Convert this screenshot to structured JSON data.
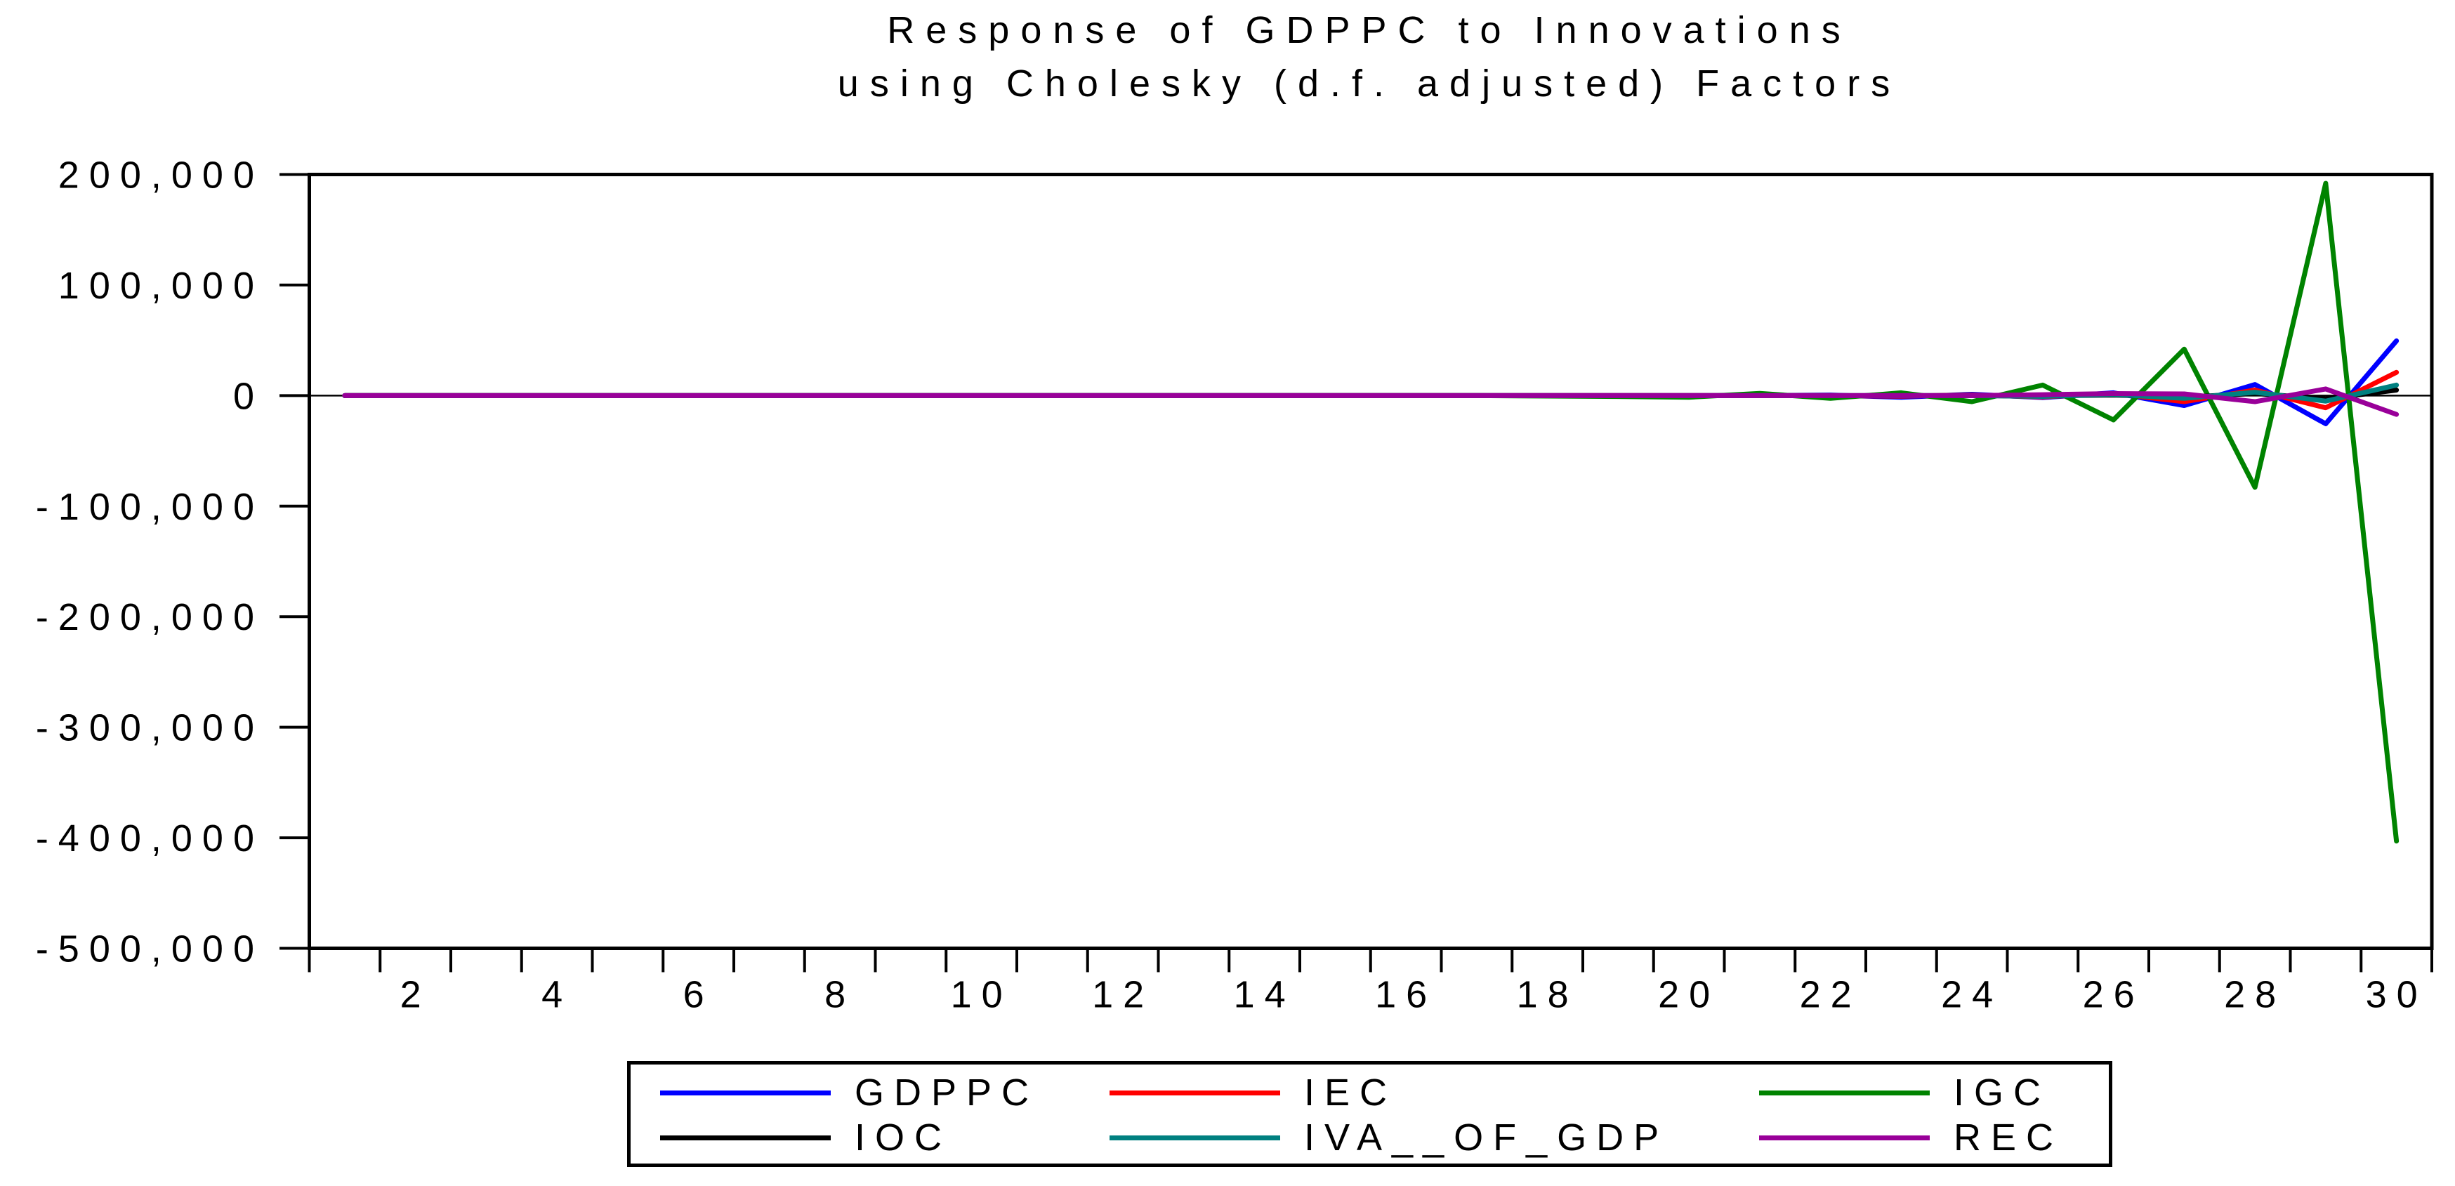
{
  "window": {
    "background": "#ffffff",
    "axis_color": "#000000",
    "zero_line_color": "#000000"
  },
  "chart_data": {
    "type": "line",
    "title_lines": [
      "Response of GDPPC to Innovations",
      "using Cholesky (d.f. adjusted) Factors"
    ],
    "title": "Response of GDPPC to Innovations using Cholesky (d.f. adjusted) Factors",
    "xlabel": "",
    "ylabel": "",
    "xlim": [
      0.5,
      30.5
    ],
    "ylim": [
      -500000,
      200000
    ],
    "grid": false,
    "zero_line": true,
    "legend_position": "bottom",
    "x_periods_count": 30,
    "x_tick_values": [
      2,
      4,
      6,
      8,
      10,
      12,
      14,
      16,
      18,
      20,
      22,
      24,
      26,
      28,
      30
    ],
    "x_tick_labels": [
      "2",
      "4",
      "6",
      "8",
      "10",
      "12",
      "14",
      "16",
      "18",
      "20",
      "22",
      "24",
      "26",
      "28",
      "30"
    ],
    "y_tick_values": [
      200000,
      100000,
      0,
      -100000,
      -200000,
      -300000,
      -400000,
      -500000
    ],
    "y_tick_labels": [
      "200,000",
      "100,000",
      "0",
      "-100,000",
      "-200,000",
      "-300,000",
      "-400,000",
      "-500,000"
    ],
    "series": [
      {
        "name": "GDPPC",
        "color": "#0000ff",
        "values": [
          0,
          0,
          0,
          0,
          0,
          0,
          0,
          0,
          0,
          0,
          0,
          0,
          0,
          0,
          0,
          0,
          0,
          0,
          0,
          0,
          0,
          500,
          -1500,
          1200,
          -1800,
          2500,
          -9000,
          10000,
          -25500,
          49500
        ]
      },
      {
        "name": "IEC",
        "color": "#ff0000",
        "values": [
          0,
          0,
          0,
          0,
          0,
          0,
          0,
          0,
          0,
          0,
          0,
          0,
          0,
          0,
          0,
          0,
          0,
          0,
          0,
          0,
          0,
          0,
          -500,
          500,
          -1200,
          1800,
          -5500,
          5000,
          -11000,
          21000
        ]
      },
      {
        "name": "IGC",
        "color": "#008300",
        "values": [
          0,
          0,
          0,
          0,
          0,
          0,
          0,
          0,
          0,
          0,
          0,
          0,
          0,
          0,
          0,
          0,
          0,
          -400,
          -800,
          -1500,
          2000,
          -2500,
          2500,
          -5500,
          9500,
          -22000,
          42000,
          -83000,
          192000,
          -403000
        ]
      },
      {
        "name": "IOC",
        "color": "#000000",
        "values": [
          0,
          0,
          0,
          0,
          0,
          0,
          0,
          0,
          0,
          0,
          0,
          0,
          0,
          0,
          0,
          0,
          0,
          0,
          0,
          0,
          0,
          0,
          0,
          0,
          -300,
          500,
          -1500,
          2000,
          -3000,
          5000
        ]
      },
      {
        "name": "IVA__OF_GDP",
        "color": "#008080",
        "values": [
          0,
          0,
          0,
          0,
          0,
          0,
          0,
          0,
          0,
          0,
          0,
          0,
          0,
          0,
          0,
          0,
          0,
          0,
          0,
          0,
          0,
          0,
          0,
          0,
          -700,
          1000,
          -2500,
          3000,
          -5000,
          9500
        ]
      },
      {
        "name": "REC",
        "color": "#990099",
        "values": [
          0,
          0,
          0,
          0,
          0,
          0,
          0,
          0,
          0,
          0,
          0,
          0,
          0,
          0,
          0,
          0,
          0,
          0,
          0,
          0,
          0,
          0,
          0,
          0,
          800,
          1800,
          1500,
          -5500,
          6000,
          -17000
        ]
      }
    ]
  }
}
